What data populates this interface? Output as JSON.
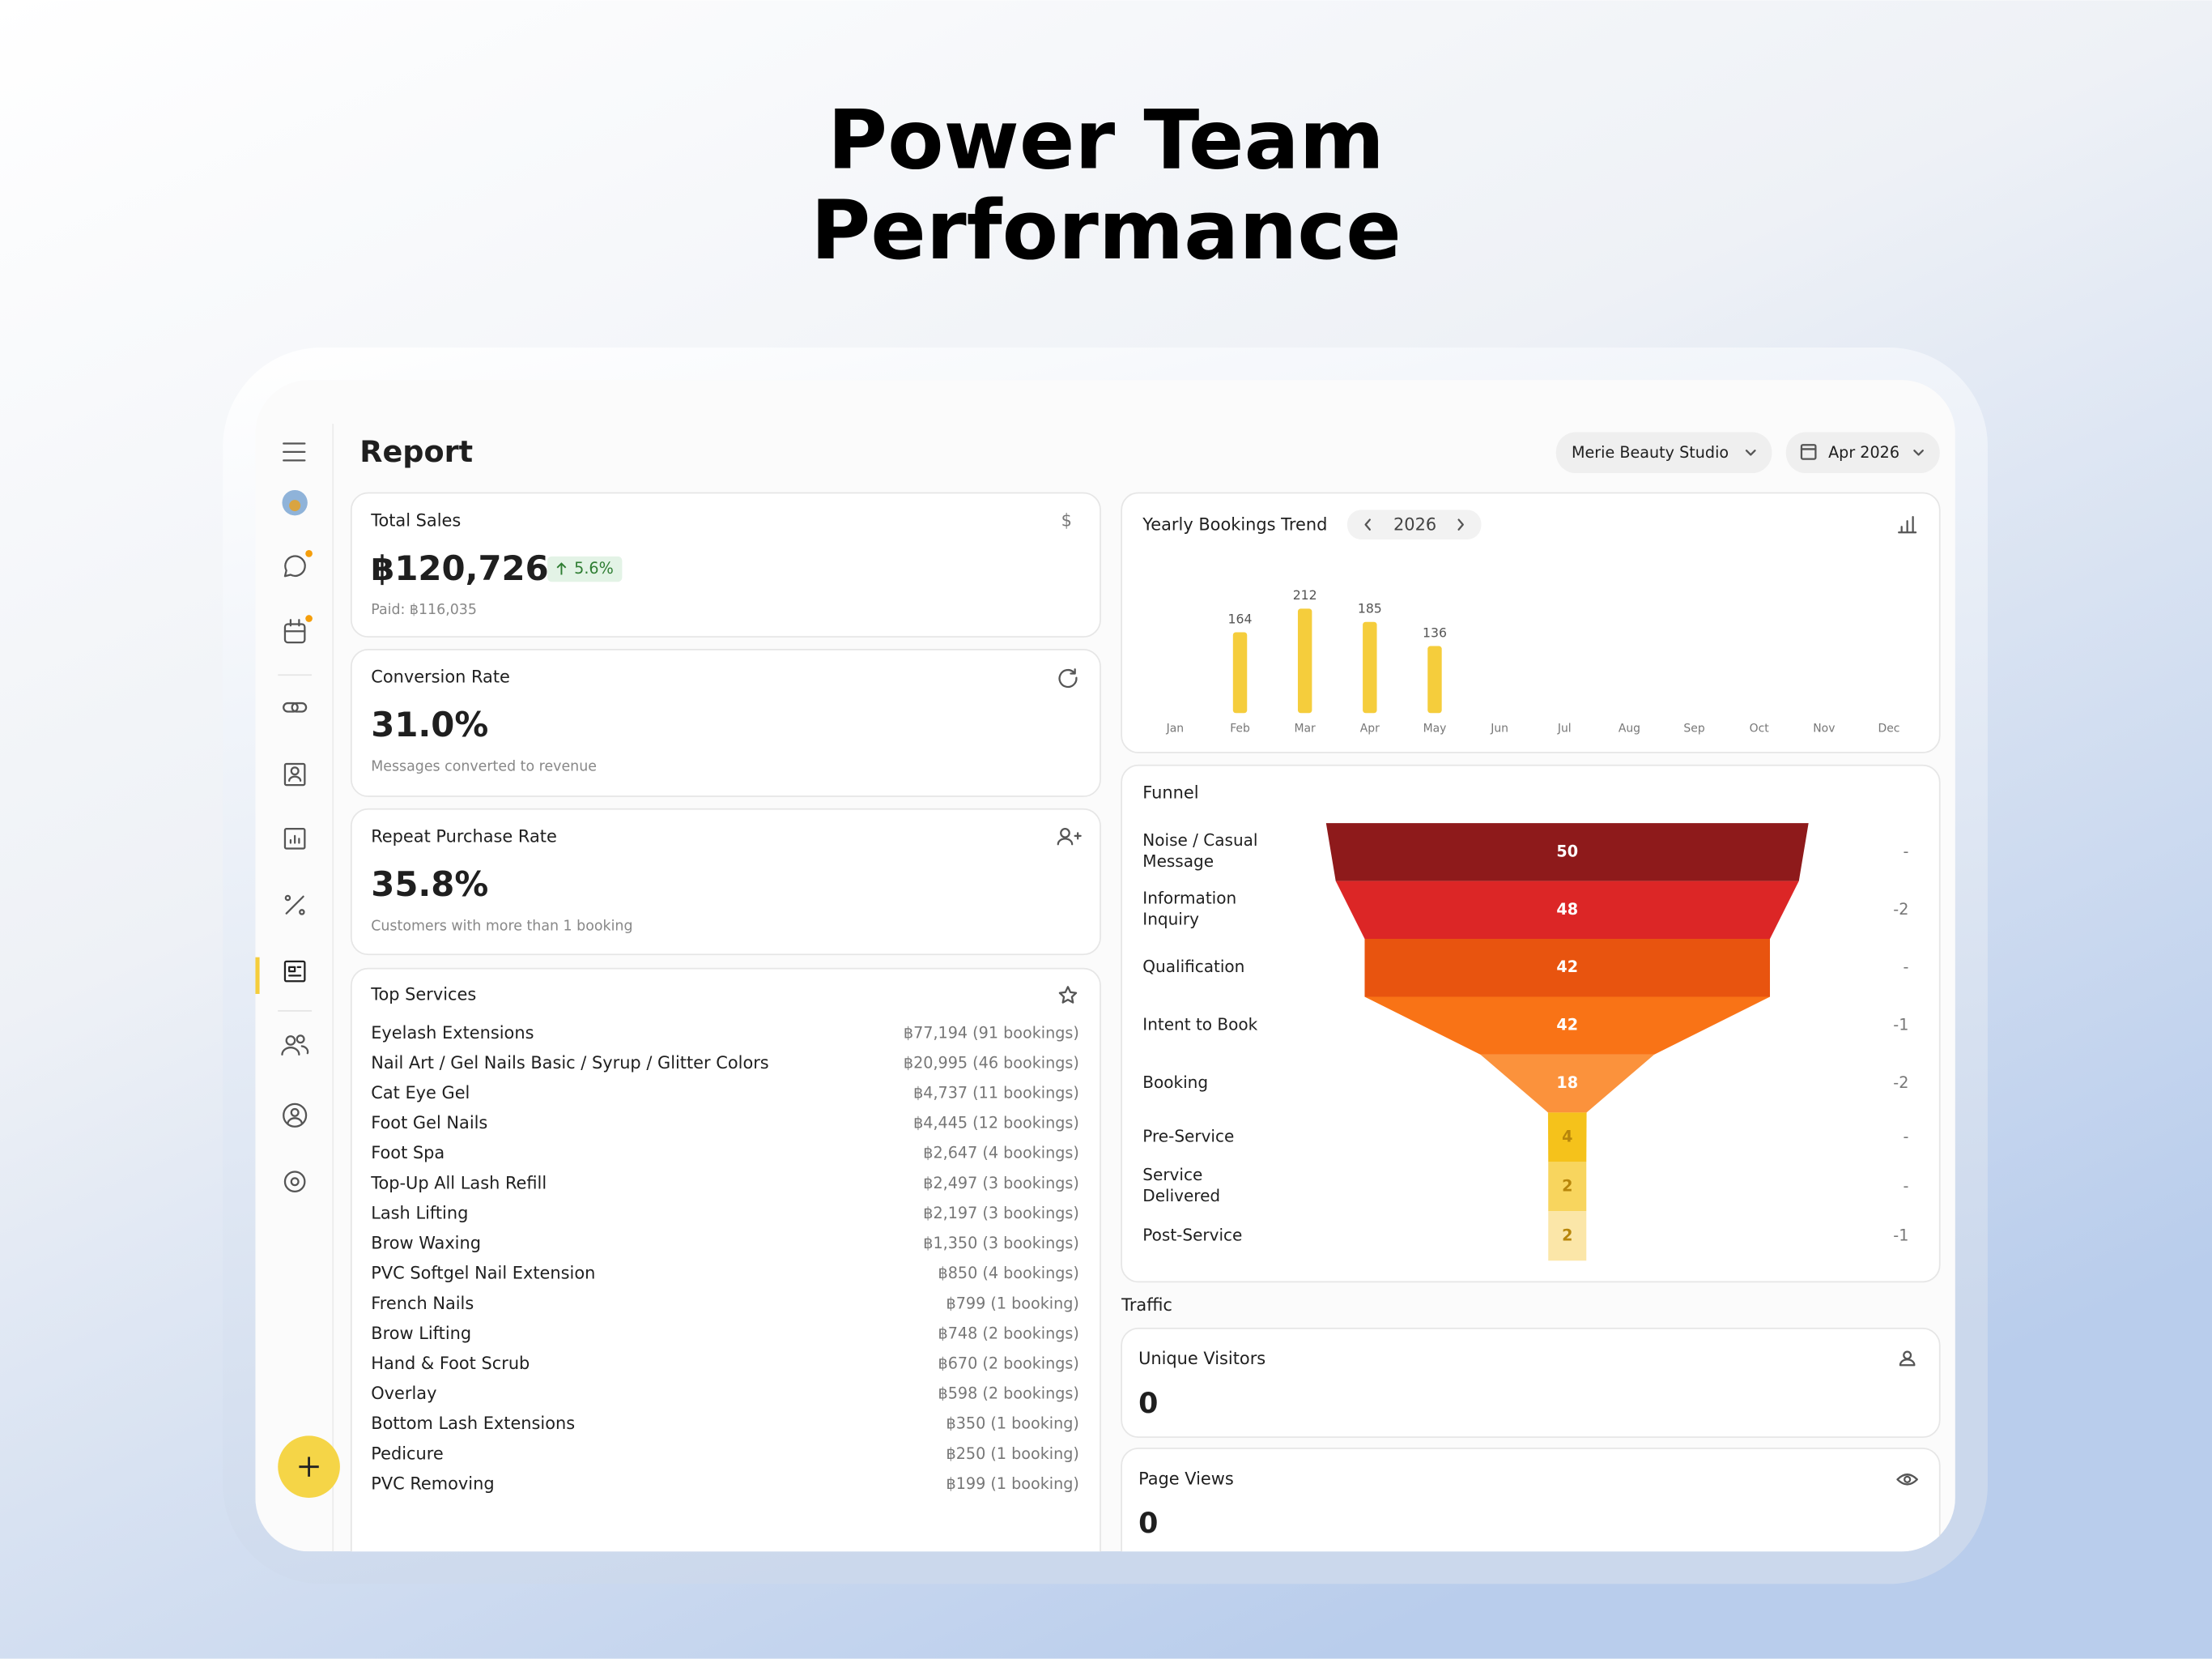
{
  "header": {
    "title_lines": [
      "Power Team",
      "Performance"
    ]
  },
  "report": {
    "title": "Report",
    "studio": "Merie Beauty Studio",
    "period": "Apr 2026"
  },
  "cards": [
    {
      "label": "Total Sales",
      "value": "฿120,726",
      "change": "5.6%",
      "note": "Paid: ฿116,035"
    },
    {
      "label": "Conversion Rate",
      "value": "31.0%",
      "note": "Messages converted to revenue"
    },
    {
      "label": "Repeat Purchase Rate",
      "value": "35.8%",
      "note": "Customers with more than 1 booking"
    }
  ],
  "top_services": {
    "title": "Top Services",
    "items": [
      {
        "name": "Eyelash Extensions",
        "detail": "฿77,194 (91 bookings)"
      },
      {
        "name": "Nail Art / Gel Nails Basic / Syrup / Glitter Colors",
        "detail": "฿20,995 (46 bookings)"
      },
      {
        "name": "Cat Eye Gel",
        "detail": "฿4,737 (11 bookings)"
      },
      {
        "name": "Foot Gel Nails",
        "detail": "฿4,445 (12 bookings)"
      },
      {
        "name": "Foot Spa",
        "detail": "฿2,647 (4 bookings)"
      },
      {
        "name": "Top-Up All Lash Refill",
        "detail": "฿2,497 (3 bookings)"
      },
      {
        "name": "Lash Lifting",
        "detail": "฿2,197 (3 bookings)"
      },
      {
        "name": "Brow Waxing",
        "detail": "฿1,350 (3 bookings)"
      },
      {
        "name": "PVC Softgel Nail Extension",
        "detail": "฿850 (4 bookings)"
      },
      {
        "name": "French Nails",
        "detail": "฿799 (1 booking)"
      },
      {
        "name": "Brow Lifting",
        "detail": "฿748 (2 bookings)"
      },
      {
        "name": "Hand & Foot Scrub",
        "detail": "฿670 (2 bookings)"
      },
      {
        "name": "Overlay",
        "detail": "฿598 (2 bookings)"
      },
      {
        "name": "Bottom Lash Extensions",
        "detail": "฿350 (1 booking)"
      },
      {
        "name": "Pedicure",
        "detail": "฿250 (1 booking)"
      },
      {
        "name": "PVC Removing",
        "detail": "฿199 (1 booking)"
      }
    ]
  },
  "chart_data": [
    {
      "type": "bar",
      "title": "Yearly Bookings Trend",
      "year": "2026",
      "categories": [
        "Jan",
        "Feb",
        "Mar",
        "Apr",
        "May",
        "Jun",
        "Jul",
        "Aug",
        "Sep",
        "Oct",
        "Nov",
        "Dec"
      ],
      "values": [
        null,
        164,
        212,
        185,
        136,
        null,
        null,
        null,
        null,
        null,
        null,
        null
      ],
      "color": "#f5cd3c"
    },
    {
      "type": "funnel",
      "title": "Funnel",
      "categories": [
        "Noise / Casual Message",
        "Information Inquiry",
        "Qualification",
        "Intent to Book",
        "Booking",
        "Pre-Service",
        "Service Delivered",
        "Post-Service"
      ],
      "values": [
        50,
        48,
        42,
        42,
        18,
        4,
        2,
        2
      ],
      "changes": [
        "-",
        -2,
        "-",
        -1,
        -2,
        "-",
        "-",
        -1
      ],
      "colors": [
        "#8e1a1b",
        "#dc2626",
        "#e8540f",
        "#f97316",
        "#fb923c",
        "#f5c21b",
        "#f8d55e",
        "#fbe6a8"
      ]
    }
  ],
  "traffic": {
    "title": "Traffic",
    "items": [
      {
        "label": "Unique Visitors",
        "value": 0
      },
      {
        "label": "Page Views",
        "value": 0
      }
    ]
  }
}
